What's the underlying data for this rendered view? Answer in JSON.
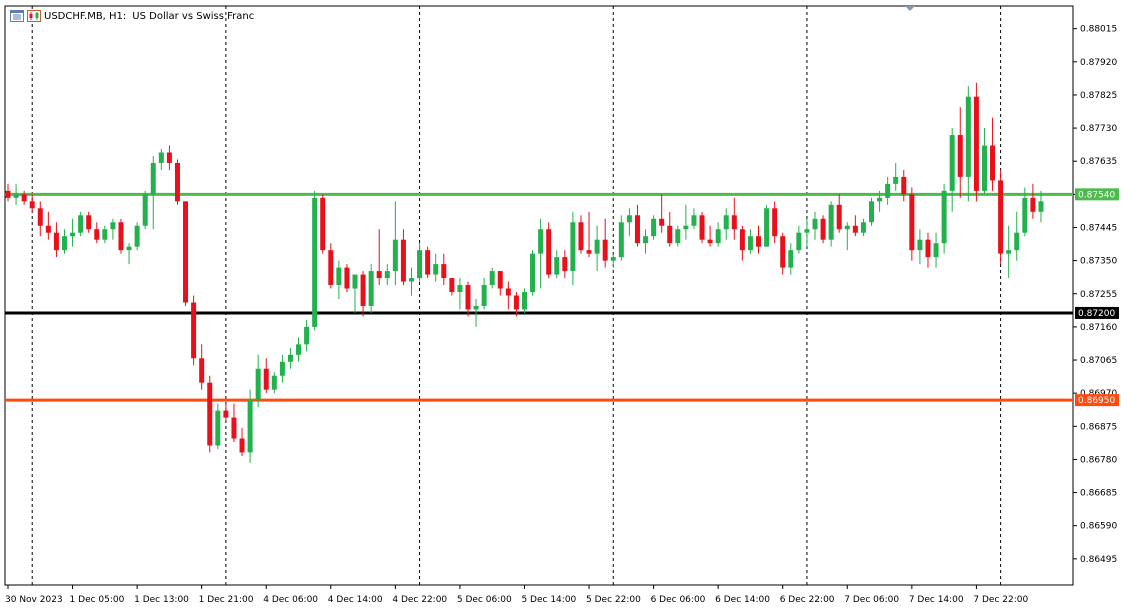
{
  "header": {
    "symbol_label": "USDCHF.MB, H1:",
    "description": "US Dollar vs Swiss Franc"
  },
  "icons": [
    "chart-window-icon",
    "candlestick-icon"
  ],
  "colors": {
    "bull": "#22b14c",
    "bear": "#e8101a",
    "support_green": "#4cbb4c",
    "black_line": "#000000",
    "orange_line": "#ff4a10"
  },
  "chart_data": {
    "type": "candlestick",
    "symbol": "USDCHF.MB",
    "timeframe": "H1",
    "ylim": [
      0.8642,
      0.8808
    ],
    "y_ticks": [
      "0.88015",
      "0.87920",
      "0.87825",
      "0.87730",
      "0.87635",
      "0.87540",
      "0.87445",
      "0.87350",
      "0.87255",
      "0.87160",
      "0.87065",
      "0.86970",
      "0.86875",
      "0.86780",
      "0.86685",
      "0.86590",
      "0.86495"
    ],
    "x_labels": [
      "30 Nov 2023",
      "1 Dec 05:00",
      "1 Dec 13:00",
      "1 Dec 21:00",
      "4 Dec 06:00",
      "4 Dec 14:00",
      "4 Dec 22:00",
      "5 Dec 06:00",
      "5 Dec 14:00",
      "5 Dec 22:00",
      "6 Dec 06:00",
      "6 Dec 14:00",
      "6 Dec 22:00",
      "7 Dec 06:00",
      "7 Dec 14:00",
      "7 Dec 22:00"
    ],
    "x_label_index": [
      0,
      8,
      16,
      24,
      32,
      40,
      48,
      56,
      64,
      72,
      80,
      88,
      96,
      104,
      112,
      120
    ],
    "day_separators": [
      3,
      27,
      51,
      75,
      99,
      123
    ],
    "horizontal_lines": [
      {
        "price": 0.8754,
        "label": "0.87540",
        "color": "#4cbb4c"
      },
      {
        "price": 0.872,
        "label": "0.87200",
        "color": "#000000"
      },
      {
        "price": 0.8695,
        "label": "0.86950",
        "color": "#ff4a10"
      }
    ],
    "candles": [
      [
        0.8755,
        0.8757,
        0.8752,
        0.8753
      ],
      [
        0.8753,
        0.8757,
        0.8751,
        0.8754
      ],
      [
        0.8754,
        0.8755,
        0.8751,
        0.8752
      ],
      [
        0.8752,
        0.8754,
        0.8749,
        0.875
      ],
      [
        0.875,
        0.8752,
        0.8742,
        0.8745
      ],
      [
        0.8745,
        0.8749,
        0.8741,
        0.8743
      ],
      [
        0.8743,
        0.8746,
        0.8736,
        0.8738
      ],
      [
        0.8738,
        0.8744,
        0.8737,
        0.8742
      ],
      [
        0.8742,
        0.8747,
        0.8739,
        0.8743
      ],
      [
        0.8743,
        0.8749,
        0.8742,
        0.8748
      ],
      [
        0.8748,
        0.8749,
        0.8743,
        0.8744
      ],
      [
        0.8744,
        0.8746,
        0.874,
        0.8741
      ],
      [
        0.8741,
        0.8745,
        0.874,
        0.8744
      ],
      [
        0.8744,
        0.8747,
        0.8741,
        0.8746
      ],
      [
        0.8746,
        0.8747,
        0.8737,
        0.8738
      ],
      [
        0.8738,
        0.874,
        0.8734,
        0.8739
      ],
      [
        0.8739,
        0.8746,
        0.8738,
        0.8745
      ],
      [
        0.8745,
        0.8755,
        0.8744,
        0.8754
      ],
      [
        0.8754,
        0.8765,
        0.8744,
        0.8763
      ],
      [
        0.8763,
        0.8767,
        0.8761,
        0.8766
      ],
      [
        0.8766,
        0.8768,
        0.8761,
        0.8763
      ],
      [
        0.8763,
        0.8764,
        0.8751,
        0.8752
      ],
      [
        0.8752,
        0.8752,
        0.8722,
        0.8723
      ],
      [
        0.8723,
        0.8725,
        0.8705,
        0.8707
      ],
      [
        0.8707,
        0.8711,
        0.8698,
        0.87
      ],
      [
        0.87,
        0.8702,
        0.868,
        0.8682
      ],
      [
        0.8682,
        0.8694,
        0.8681,
        0.8692
      ],
      [
        0.8692,
        0.8694,
        0.8689,
        0.869
      ],
      [
        0.869,
        0.8694,
        0.8683,
        0.8684
      ],
      [
        0.8684,
        0.8687,
        0.8679,
        0.868
      ],
      [
        0.868,
        0.8698,
        0.8677,
        0.8695
      ],
      [
        0.8695,
        0.8708,
        0.8693,
        0.8704
      ],
      [
        0.8704,
        0.8707,
        0.8697,
        0.8698
      ],
      [
        0.8698,
        0.8703,
        0.8697,
        0.8702
      ],
      [
        0.8702,
        0.8708,
        0.87,
        0.8706
      ],
      [
        0.8706,
        0.871,
        0.8704,
        0.8708
      ],
      [
        0.8708,
        0.8713,
        0.8706,
        0.8711
      ],
      [
        0.8711,
        0.8718,
        0.8709,
        0.8716
      ],
      [
        0.8716,
        0.8755,
        0.8715,
        0.8753
      ],
      [
        0.8753,
        0.8754,
        0.8737,
        0.8738
      ],
      [
        0.8738,
        0.874,
        0.8727,
        0.8728
      ],
      [
        0.8728,
        0.8735,
        0.8724,
        0.8733
      ],
      [
        0.8733,
        0.8734,
        0.8726,
        0.8727
      ],
      [
        0.8727,
        0.873,
        0.872,
        0.8731
      ],
      [
        0.8731,
        0.8732,
        0.8719,
        0.8722
      ],
      [
        0.8722,
        0.8734,
        0.872,
        0.8732
      ],
      [
        0.8732,
        0.8744,
        0.8728,
        0.873
      ],
      [
        0.873,
        0.8734,
        0.8728,
        0.8732
      ],
      [
        0.8732,
        0.8752,
        0.8728,
        0.8741
      ],
      [
        0.8741,
        0.8744,
        0.8728,
        0.8729
      ],
      [
        0.8729,
        0.8733,
        0.8725,
        0.873
      ],
      [
        0.873,
        0.874,
        0.8729,
        0.8738
      ],
      [
        0.8738,
        0.8739,
        0.873,
        0.8731
      ],
      [
        0.8731,
        0.8737,
        0.8729,
        0.8734
      ],
      [
        0.8734,
        0.8737,
        0.8728,
        0.873
      ],
      [
        0.873,
        0.873,
        0.8725,
        0.8726
      ],
      [
        0.8726,
        0.873,
        0.8721,
        0.8728
      ],
      [
        0.8728,
        0.8729,
        0.8719,
        0.8721
      ],
      [
        0.8721,
        0.8724,
        0.8716,
        0.8722
      ],
      [
        0.8722,
        0.873,
        0.8721,
        0.8728
      ],
      [
        0.8728,
        0.8733,
        0.8727,
        0.8732
      ],
      [
        0.8732,
        0.8732,
        0.8725,
        0.8727
      ],
      [
        0.8727,
        0.8729,
        0.8721,
        0.8725
      ],
      [
        0.8725,
        0.8726,
        0.8719,
        0.8721
      ],
      [
        0.8721,
        0.8727,
        0.872,
        0.8726
      ],
      [
        0.8726,
        0.8738,
        0.8725,
        0.8737
      ],
      [
        0.8737,
        0.8747,
        0.8727,
        0.8744
      ],
      [
        0.8744,
        0.8746,
        0.873,
        0.8731
      ],
      [
        0.8731,
        0.8738,
        0.873,
        0.8736
      ],
      [
        0.8736,
        0.8738,
        0.873,
        0.8732
      ],
      [
        0.8732,
        0.8749,
        0.8728,
        0.8746
      ],
      [
        0.8746,
        0.8748,
        0.8737,
        0.8738
      ],
      [
        0.8738,
        0.8749,
        0.8736,
        0.8737
      ],
      [
        0.8737,
        0.8745,
        0.8732,
        0.8741
      ],
      [
        0.8741,
        0.8747,
        0.8733,
        0.8735
      ],
      [
        0.8735,
        0.8737,
        0.8733,
        0.8736
      ],
      [
        0.8736,
        0.8748,
        0.8735,
        0.8746
      ],
      [
        0.8746,
        0.875,
        0.8742,
        0.8748
      ],
      [
        0.8748,
        0.8751,
        0.8739,
        0.874
      ],
      [
        0.874,
        0.8744,
        0.8737,
        0.8742
      ],
      [
        0.8742,
        0.8748,
        0.8741,
        0.8747
      ],
      [
        0.8747,
        0.8754,
        0.8743,
        0.8745
      ],
      [
        0.8745,
        0.8749,
        0.8739,
        0.874
      ],
      [
        0.874,
        0.8745,
        0.8739,
        0.8744
      ],
      [
        0.8744,
        0.8751,
        0.8741,
        0.8745
      ],
      [
        0.8745,
        0.875,
        0.8744,
        0.8748
      ],
      [
        0.8748,
        0.8749,
        0.874,
        0.8741
      ],
      [
        0.8741,
        0.8745,
        0.8739,
        0.874
      ],
      [
        0.874,
        0.8746,
        0.8739,
        0.8744
      ],
      [
        0.8744,
        0.875,
        0.8741,
        0.8748
      ],
      [
        0.8748,
        0.8753,
        0.8741,
        0.8744
      ],
      [
        0.8744,
        0.8745,
        0.8735,
        0.8738
      ],
      [
        0.8738,
        0.8744,
        0.8737,
        0.8742
      ],
      [
        0.8742,
        0.8745,
        0.8737,
        0.8739
      ],
      [
        0.8739,
        0.8751,
        0.8739,
        0.875
      ],
      [
        0.875,
        0.8752,
        0.874,
        0.8742
      ],
      [
        0.8742,
        0.8743,
        0.8731,
        0.8733
      ],
      [
        0.8733,
        0.874,
        0.8731,
        0.8738
      ],
      [
        0.8738,
        0.8745,
        0.8737,
        0.8743
      ],
      [
        0.8743,
        0.8747,
        0.8739,
        0.8744
      ],
      [
        0.8744,
        0.8749,
        0.8741,
        0.8747
      ],
      [
        0.8747,
        0.8748,
        0.874,
        0.8741
      ],
      [
        0.8741,
        0.8752,
        0.8739,
        0.8751
      ],
      [
        0.8751,
        0.8754,
        0.8743,
        0.8744
      ],
      [
        0.8744,
        0.8746,
        0.8738,
        0.8745
      ],
      [
        0.8745,
        0.8748,
        0.8742,
        0.8743
      ],
      [
        0.8743,
        0.8747,
        0.8742,
        0.8746
      ],
      [
        0.8746,
        0.8753,
        0.8745,
        0.8752
      ],
      [
        0.8752,
        0.8755,
        0.8749,
        0.8753
      ],
      [
        0.8753,
        0.8759,
        0.8751,
        0.8757
      ],
      [
        0.8757,
        0.8763,
        0.8755,
        0.8759
      ],
      [
        0.8759,
        0.8761,
        0.8752,
        0.8754
      ],
      [
        0.8754,
        0.8756,
        0.8735,
        0.8738
      ],
      [
        0.8738,
        0.8744,
        0.8734,
        0.8741
      ],
      [
        0.8741,
        0.8743,
        0.8733,
        0.8736
      ],
      [
        0.8736,
        0.8743,
        0.8733,
        0.874
      ],
      [
        0.874,
        0.8757,
        0.8737,
        0.8755
      ],
      [
        0.8755,
        0.8773,
        0.8749,
        0.8771
      ],
      [
        0.8771,
        0.8779,
        0.8753,
        0.8759
      ],
      [
        0.8759,
        0.8785,
        0.8752,
        0.8782
      ],
      [
        0.8782,
        0.8786,
        0.8752,
        0.8755
      ],
      [
        0.8755,
        0.8773,
        0.8754,
        0.8768
      ],
      [
        0.8768,
        0.8776,
        0.8755,
        0.8758
      ],
      [
        0.8758,
        0.8761,
        0.8734,
        0.8737
      ],
      [
        0.8737,
        0.8745,
        0.873,
        0.8738
      ],
      [
        0.8738,
        0.8749,
        0.8735,
        0.8743
      ],
      [
        0.8743,
        0.8756,
        0.8742,
        0.8753
      ],
      [
        0.8753,
        0.8757,
        0.8747,
        0.8749
      ],
      [
        0.8749,
        0.8755,
        0.8746,
        0.8752
      ]
    ]
  }
}
